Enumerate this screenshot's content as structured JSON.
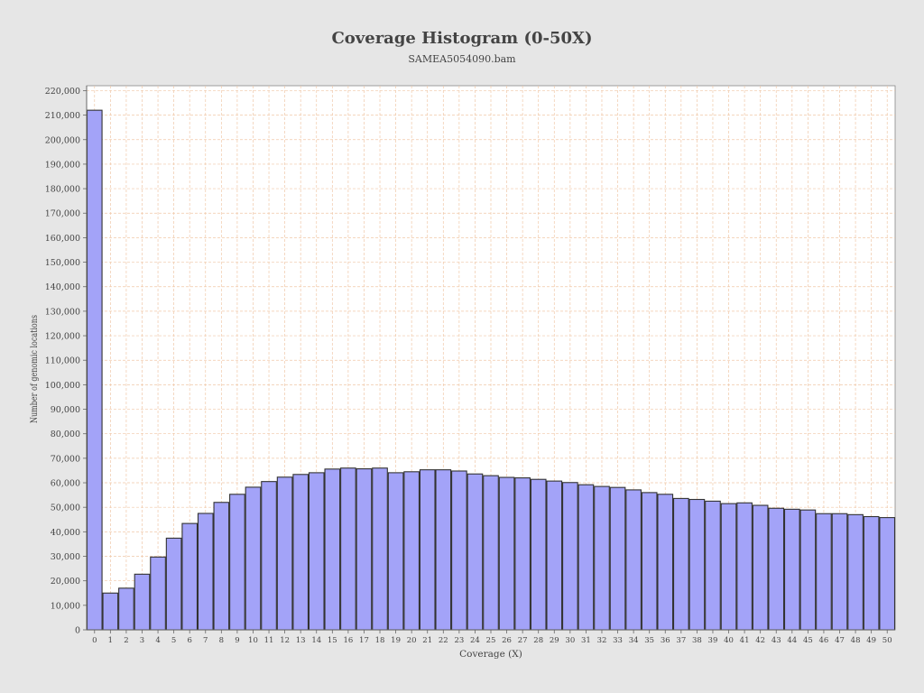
{
  "chart_data": {
    "type": "bar",
    "title": "Coverage Histogram (0-50X)",
    "subtitle": "SAMEA5054090.bam",
    "xlabel": "Coverage (X)",
    "ylabel": "Number of genomic locations",
    "ylim": [
      0,
      222000
    ],
    "yticks": [
      0,
      10000,
      20000,
      30000,
      40000,
      50000,
      60000,
      70000,
      80000,
      90000,
      100000,
      110000,
      120000,
      130000,
      140000,
      150000,
      160000,
      170000,
      180000,
      190000,
      200000,
      210000,
      220000
    ],
    "ytick_labels": [
      "0",
      "10,000",
      "20,000",
      "30,000",
      "40,000",
      "50,000",
      "60,000",
      "70,000",
      "80,000",
      "90,000",
      "100,000",
      "110,000",
      "120,000",
      "130,000",
      "140,000",
      "150,000",
      "160,000",
      "170,000",
      "180,000",
      "190,000",
      "200,000",
      "210,000",
      "220,000"
    ],
    "categories": [
      "0",
      "1",
      "2",
      "3",
      "4",
      "5",
      "6",
      "7",
      "8",
      "9",
      "10",
      "11",
      "12",
      "13",
      "14",
      "15",
      "16",
      "17",
      "18",
      "19",
      "20",
      "21",
      "22",
      "23",
      "24",
      "25",
      "26",
      "27",
      "28",
      "29",
      "30",
      "31",
      "32",
      "33",
      "34",
      "35",
      "36",
      "37",
      "38",
      "39",
      "40",
      "41",
      "42",
      "43",
      "44",
      "45",
      "46",
      "47",
      "48",
      "49",
      "50"
    ],
    "values": [
      212000,
      15000,
      17000,
      22700,
      29700,
      37400,
      43400,
      47500,
      52000,
      55300,
      58200,
      60500,
      62300,
      63400,
      64100,
      65600,
      66000,
      65700,
      66000,
      64100,
      64500,
      65300,
      65300,
      64800,
      63600,
      62900,
      62200,
      62000,
      61400,
      60700,
      60100,
      59200,
      58500,
      58100,
      57100,
      56000,
      55300,
      53600,
      53200,
      52500,
      51500,
      51800,
      50800,
      49600,
      49200,
      48900,
      47400,
      47400,
      47000,
      46200,
      45800
    ],
    "grid": true,
    "legend": "none",
    "colors": {
      "background": "#e6e6e6",
      "plot_background": "#ffffff",
      "bar_fill": "#a3a3f8",
      "bar_stroke": "#333333",
      "grid": "#f0c8a8",
      "axis": "#666666"
    }
  }
}
